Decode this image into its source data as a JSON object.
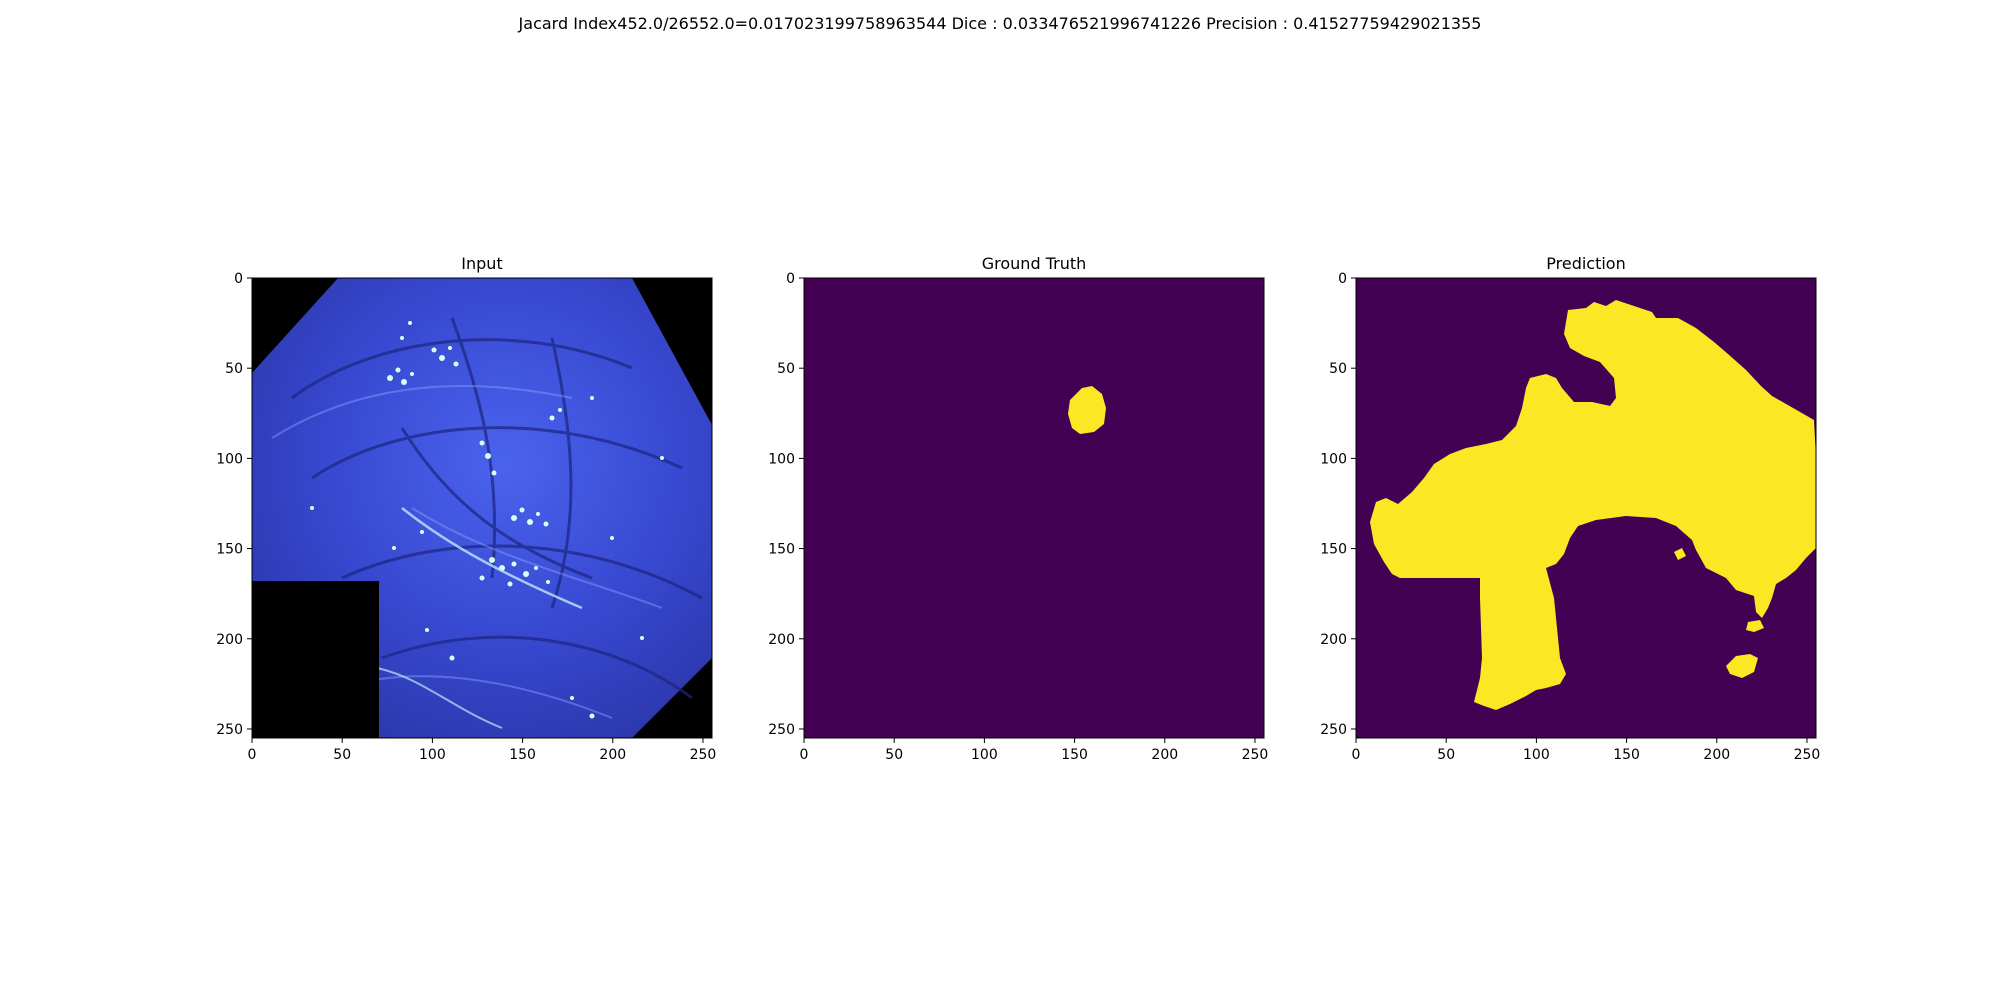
{
  "figure": {
    "suptitle": "Jacard Index452.0/26552.0=0.017023199758963544 Dice : 0.033476521996741226 Precision : 0.41527759429021355"
  },
  "panels": [
    {
      "title": "Input",
      "kind": "endoscopy-image",
      "xlim": [
        0,
        255
      ],
      "ylim": [
        255,
        0
      ],
      "xticks": [
        "0",
        "50",
        "100",
        "150",
        "200",
        "250"
      ],
      "yticks": [
        "0",
        "50",
        "100",
        "150",
        "200",
        "250"
      ],
      "colors": {
        "tissue": "#3a4fd8",
        "mask": "#000000"
      }
    },
    {
      "title": "Ground Truth",
      "kind": "segmentation-mask",
      "xlim": [
        0,
        255
      ],
      "ylim": [
        255,
        0
      ],
      "xticks": [
        "0",
        "50",
        "100",
        "150",
        "200",
        "250"
      ],
      "yticks": [
        "0",
        "50",
        "100",
        "150",
        "200",
        "250"
      ],
      "colors": {
        "background": "#440154",
        "foreground": "#fde725"
      }
    },
    {
      "title": "Prediction",
      "kind": "segmentation-mask",
      "xlim": [
        0,
        255
      ],
      "ylim": [
        255,
        0
      ],
      "xticks": [
        "0",
        "50",
        "100",
        "150",
        "200",
        "250"
      ],
      "yticks": [
        "0",
        "50",
        "100",
        "150",
        "200",
        "250"
      ],
      "colors": {
        "background": "#440154",
        "foreground": "#fde725"
      }
    }
  ]
}
